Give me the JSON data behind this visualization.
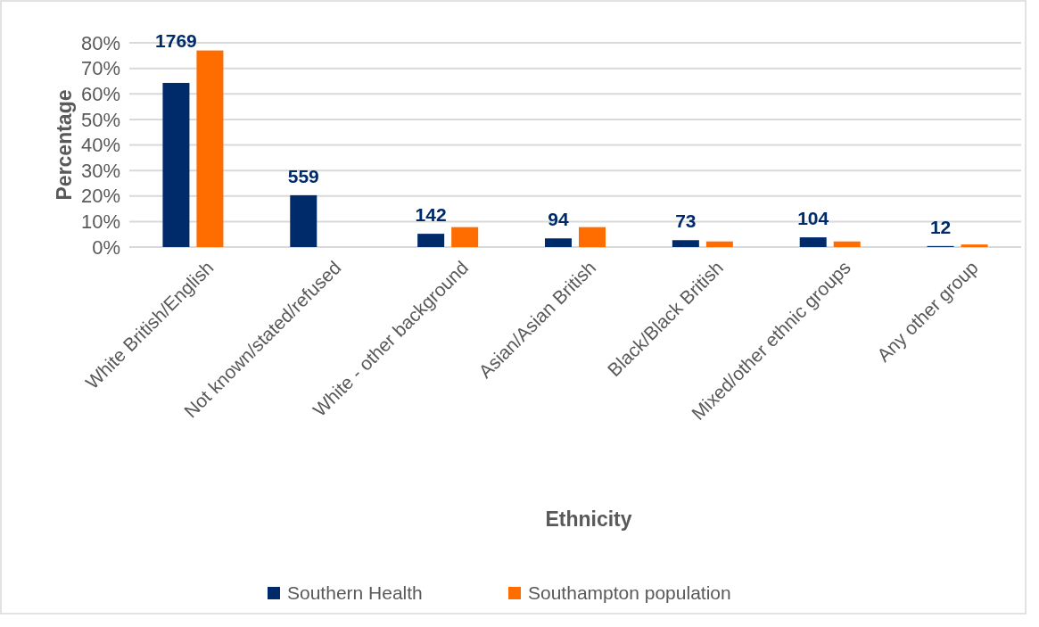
{
  "chart_data": {
    "type": "bar",
    "xlabel": "Ethnicity",
    "ylabel": "Percentage",
    "categories": [
      "White British/English",
      "Not known/stated/refused",
      "White - other background",
      "Asian/Asian British",
      "Black/Black British",
      "Mixed/other ethnic groups",
      "Any other group"
    ],
    "series": [
      {
        "name": "Southern Health",
        "color": "#002b6b",
        "values": [
          64.3,
          20.3,
          5.2,
          3.4,
          2.7,
          3.8,
          0.4
        ]
      },
      {
        "name": "Southampton population",
        "color": "#ff6d00",
        "values": [
          77,
          null,
          7.8,
          7.8,
          2.2,
          2.2,
          1.0
        ]
      }
    ],
    "ylim": [
      0,
      80
    ],
    "yticks": [
      {
        "value": 0,
        "label": "0%"
      },
      {
        "value": 10,
        "label": "10%"
      },
      {
        "value": 20,
        "label": "20%"
      },
      {
        "value": 30,
        "label": "30%"
      },
      {
        "value": 40,
        "label": "40%"
      },
      {
        "value": 50,
        "label": "50%"
      },
      {
        "value": 60,
        "label": "60%"
      },
      {
        "value": 70,
        "label": "70%"
      },
      {
        "value": 80,
        "label": "80%"
      }
    ],
    "grid": "y",
    "legend": "bottom",
    "annotations": [
      "1769",
      "559",
      "142",
      "94",
      "73",
      "104",
      "12"
    ]
  }
}
